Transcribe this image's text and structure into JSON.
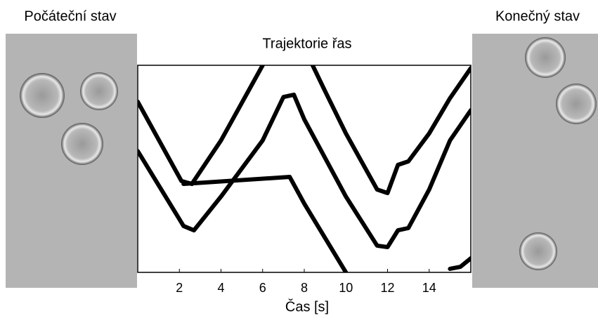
{
  "left_label": "Počáteční stav",
  "right_label": "Konečný stav",
  "chart_data": {
    "type": "line",
    "title": "Trajektorie řas",
    "x_label": "Čas [s]",
    "xlim": [
      0,
      16
    ],
    "xticks": [
      2,
      4,
      6,
      8,
      10,
      12,
      14
    ],
    "ylim": [
      0,
      100
    ],
    "series": [
      {
        "color": "#000000",
        "x": [
          0,
          2.1,
          2.6,
          4,
          6
        ],
        "values": [
          82.4,
          44.1,
          42.7,
          63.7,
          100
        ]
      },
      {
        "color": "#000000",
        "x": [
          2.2,
          7.3,
          8,
          10
        ],
        "values": [
          42.7,
          46.1,
          33.2,
          0
        ]
      },
      {
        "color": "#000000",
        "x": [
          0,
          2.2,
          2.7,
          4,
          6,
          7,
          7.5,
          8,
          10,
          11.5,
          12,
          12.5,
          13,
          14,
          15,
          16
        ],
        "values": [
          58.6,
          22.4,
          20.3,
          36.6,
          63.7,
          84.7,
          85.8,
          73.9,
          36.6,
          12.9,
          12.2,
          20.3,
          21.4,
          40,
          63.7,
          78.3
        ]
      },
      {
        "color": "#000000",
        "x": [
          8.4,
          9,
          10,
          11.5,
          12,
          12.5,
          13,
          14,
          15,
          16
        ],
        "values": [
          100,
          87.5,
          67.1,
          40,
          38.3,
          51.9,
          53.6,
          67.1,
          84.1,
          98.6
        ]
      },
      {
        "color": "#000000",
        "x": [
          15,
          15.5,
          16
        ],
        "values": [
          1.7,
          2.7,
          6.8
        ]
      }
    ]
  }
}
